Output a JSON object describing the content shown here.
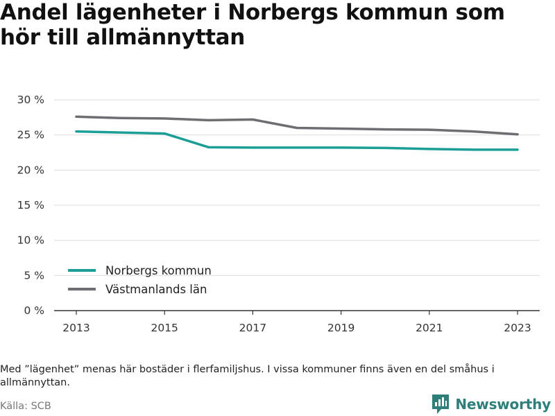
{
  "page": {
    "title": "Andel lägenheter i Norbergs kommun som hör till allmännyttan",
    "note": "Med ”lägenhet” menas här bostäder i flerfamiljshus. I vissa kommuner finns även en del småhus i allmännyttan.",
    "source": "Källa: SCB",
    "brand": "Newsworthy",
    "brand_icon": "newsworthy-logo-icon"
  },
  "chart_data": {
    "type": "line",
    "title": "Andel lägenheter i Norbergs kommun som hör till allmännyttan",
    "xlabel": "",
    "ylabel": "",
    "x": [
      2013,
      2014,
      2015,
      2016,
      2017,
      2018,
      2019,
      2020,
      2021,
      2022,
      2023
    ],
    "x_ticks": [
      "2013",
      "2015",
      "2017",
      "2019",
      "2021",
      "2023"
    ],
    "y_ticks": [
      "0 %",
      "5 %",
      "10 %",
      "15 %",
      "20 %",
      "25 %",
      "30 %"
    ],
    "ylim": [
      0,
      30
    ],
    "grid": true,
    "legend_position": "bottom-left",
    "series": [
      {
        "name": "Norbergs kommun",
        "color": "#1a9e96",
        "values": [
          25.5,
          25.35,
          25.2,
          23.25,
          23.2,
          23.2,
          23.2,
          23.15,
          23.0,
          22.9,
          22.9
        ]
      },
      {
        "name": "Västmanlands län",
        "color": "#6d6d72",
        "values": [
          27.6,
          27.4,
          27.35,
          27.1,
          27.2,
          26.0,
          25.9,
          25.8,
          25.75,
          25.5,
          25.1
        ]
      }
    ]
  }
}
